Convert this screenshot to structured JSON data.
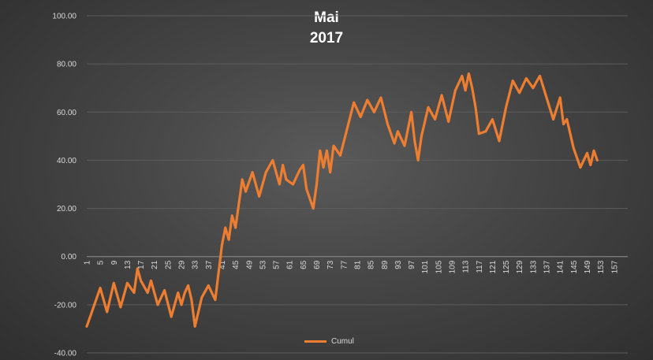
{
  "chart_data": {
    "type": "line",
    "title_line1": "Mai",
    "title_line2": "2017",
    "xlabel": "",
    "ylabel": "",
    "ylim": [
      -40,
      100
    ],
    "yticks": [
      -40,
      -20,
      0,
      20,
      40,
      60,
      80,
      100
    ],
    "ytick_labels": [
      "-40.00",
      "-20.00",
      "0.00",
      "20.00",
      "40.00",
      "60.00",
      "80.00",
      "100.00"
    ],
    "xlim": [
      1,
      158
    ],
    "xticks": [
      1,
      5,
      9,
      13,
      17,
      21,
      25,
      29,
      33,
      37,
      41,
      45,
      49,
      53,
      57,
      61,
      65,
      69,
      73,
      77,
      81,
      85,
      89,
      93,
      97,
      101,
      105,
      109,
      113,
      117,
      121,
      125,
      129,
      133,
      137,
      141,
      145,
      149,
      153,
      157
    ],
    "gridlines": true,
    "legend_position": "bottom",
    "colors": {
      "line": "#ed7d31",
      "grid": "#5c5c5c",
      "axis_text": "#d9d9d9",
      "title": "#ffffff"
    },
    "series": [
      {
        "name": "Cumul",
        "x": [
          1,
          3,
          5,
          7,
          9,
          11,
          13,
          15,
          16,
          17,
          19,
          20,
          22,
          24,
          26,
          28,
          29,
          30,
          31,
          32,
          33,
          35,
          37,
          39,
          41,
          42,
          43,
          44,
          45,
          46,
          47,
          48,
          50,
          52,
          54,
          56,
          58,
          59,
          60,
          62,
          64,
          65,
          66,
          68,
          69,
          70,
          71,
          72,
          73,
          74,
          76,
          78,
          80,
          82,
          84,
          86,
          88,
          90,
          92,
          93,
          95,
          97,
          98,
          99,
          100,
          102,
          104,
          106,
          108,
          110,
          112,
          113,
          114,
          115,
          116,
          117,
          119,
          121,
          123,
          125,
          127,
          129,
          131,
          133,
          135,
          137,
          139,
          141,
          142,
          143,
          145,
          147,
          149,
          150,
          151,
          152
        ],
        "y": [
          -29,
          -21,
          -13,
          -23,
          -11,
          -21,
          -11,
          -15,
          -5,
          -10,
          -15,
          -10,
          -20,
          -14,
          -25,
          -15,
          -20,
          -15,
          -12,
          -18,
          -29,
          -17,
          -12,
          -18,
          5,
          12,
          7,
          17,
          12,
          22,
          32,
          27,
          35,
          25,
          35,
          40,
          30,
          38,
          32,
          30,
          36,
          38,
          28,
          20,
          30,
          44,
          37,
          44,
          35,
          46,
          42,
          53,
          64,
          58,
          65,
          60,
          66,
          55,
          47,
          52,
          46,
          60,
          48,
          40,
          50,
          62,
          57,
          67,
          56,
          69,
          75,
          69,
          76,
          70,
          62,
          51,
          52,
          57,
          48,
          62,
          73,
          68,
          74,
          70,
          75,
          66,
          57,
          66,
          55,
          57,
          45,
          37,
          43,
          38,
          44,
          40
        ]
      }
    ]
  }
}
